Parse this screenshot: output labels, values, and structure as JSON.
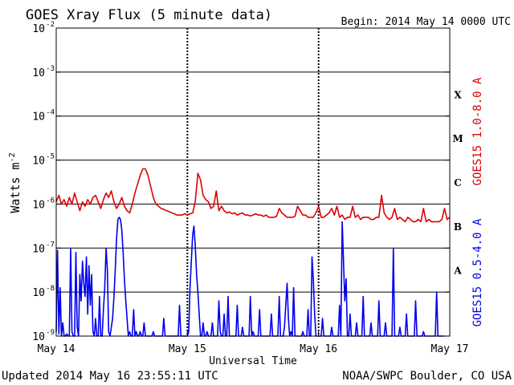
{
  "chart_data": {
    "type": "line",
    "title": "GOES Xray Flux (5 minute data)",
    "begin_label": "Begin:  2014 May 14 0000 UTC",
    "ylabel_main": "Watts m",
    "ylabel_sup": "-2",
    "xlabel": "Universal Time",
    "footer_left": "Updated 2014 May 16 23:55:11 UTC",
    "footer_right": "NOAA/SWPC Boulder, CO USA",
    "x_ticks": [
      "May 14",
      "May 15",
      "May 16",
      "May 17"
    ],
    "xlim_days": [
      0,
      3
    ],
    "ylog": true,
    "ylim": [
      1e-09,
      0.01
    ],
    "y_ticks": [
      {
        "base": "10",
        "exp": "-2"
      },
      {
        "base": "10",
        "exp": "-3"
      },
      {
        "base": "10",
        "exp": "-4"
      },
      {
        "base": "10",
        "exp": "-5"
      },
      {
        "base": "10",
        "exp": "-6"
      },
      {
        "base": "10",
        "exp": "-7"
      },
      {
        "base": "10",
        "exp": "-8"
      },
      {
        "base": "10",
        "exp": "-9"
      }
    ],
    "flare_classes": [
      {
        "label": "X",
        "log": -3.5
      },
      {
        "label": "M",
        "log": -4.5
      },
      {
        "label": "C",
        "log": -5.5
      },
      {
        "label": "B",
        "log": -6.5
      },
      {
        "label": "A",
        "log": -7.5
      }
    ],
    "grid": "horizontal lines at each decade from 1e-3 to 1e-7; dotted vertical lines at day boundaries",
    "series": [
      {
        "name": "GOES15 1.0-8.0 A",
        "color": "#dd0000",
        "x_days": [
          0,
          0.02,
          0.04,
          0.06,
          0.08,
          0.1,
          0.12,
          0.14,
          0.16,
          0.18,
          0.2,
          0.22,
          0.24,
          0.26,
          0.28,
          0.3,
          0.32,
          0.34,
          0.36,
          0.38,
          0.4,
          0.42,
          0.44,
          0.46,
          0.48,
          0.5,
          0.52,
          0.54,
          0.56,
          0.58,
          0.6,
          0.62,
          0.64,
          0.66,
          0.68,
          0.7,
          0.72,
          0.74,
          0.76,
          0.78,
          0.8,
          0.82,
          0.84,
          0.86,
          0.88,
          0.9,
          0.92,
          0.94,
          0.96,
          0.98,
          1.0,
          1.02,
          1.04,
          1.06,
          1.08,
          1.1,
          1.12,
          1.14,
          1.16,
          1.18,
          1.2,
          1.22,
          1.24,
          1.26,
          1.28,
          1.3,
          1.32,
          1.34,
          1.36,
          1.38,
          1.4,
          1.42,
          1.44,
          1.46,
          1.48,
          1.5,
          1.52,
          1.54,
          1.56,
          1.58,
          1.6,
          1.62,
          1.64,
          1.66,
          1.68,
          1.7,
          1.72,
          1.74,
          1.76,
          1.78,
          1.8,
          1.82,
          1.84,
          1.86,
          1.88,
          1.9,
          1.92,
          1.94,
          1.96,
          1.98,
          2.0,
          2.02,
          2.04,
          2.06,
          2.08,
          2.1,
          2.12,
          2.14,
          2.16,
          2.18,
          2.2,
          2.22,
          2.24,
          2.26,
          2.28,
          2.3,
          2.32,
          2.34,
          2.36,
          2.38,
          2.4,
          2.42,
          2.44,
          2.46,
          2.48,
          2.5,
          2.52,
          2.54,
          2.56,
          2.58,
          2.6,
          2.62,
          2.64,
          2.66,
          2.68,
          2.7,
          2.72,
          2.74,
          2.76,
          2.78,
          2.8,
          2.82,
          2.84,
          2.86,
          2.88,
          2.9,
          2.92,
          2.94,
          2.96,
          2.98,
          3.0
        ],
        "log_y": [
          -5.95,
          -5.8,
          -6.0,
          -5.9,
          -6.05,
          -5.85,
          -6.0,
          -5.75,
          -5.95,
          -6.15,
          -5.95,
          -6.05,
          -5.9,
          -6.0,
          -5.85,
          -5.8,
          -5.95,
          -6.1,
          -5.9,
          -5.75,
          -5.85,
          -5.7,
          -5.95,
          -6.1,
          -6.0,
          -5.85,
          -6.05,
          -6.15,
          -6.2,
          -6.0,
          -5.75,
          -5.55,
          -5.35,
          -5.2,
          -5.2,
          -5.35,
          -5.6,
          -5.85,
          -6.0,
          -6.05,
          -6.1,
          -6.12,
          -6.15,
          -6.17,
          -6.2,
          -6.22,
          -6.25,
          -6.25,
          -6.25,
          -6.22,
          -6.25,
          -6.22,
          -6.2,
          -5.95,
          -5.3,
          -5.45,
          -5.8,
          -5.9,
          -5.95,
          -6.1,
          -6.05,
          -5.7,
          -6.15,
          -6.05,
          -6.15,
          -6.2,
          -6.18,
          -6.22,
          -6.2,
          -6.25,
          -6.22,
          -6.2,
          -6.25,
          -6.25,
          -6.27,
          -6.25,
          -6.22,
          -6.25,
          -6.25,
          -6.28,
          -6.25,
          -6.3,
          -6.3,
          -6.3,
          -6.28,
          -6.1,
          -6.2,
          -6.25,
          -6.3,
          -6.3,
          -6.3,
          -6.28,
          -6.05,
          -6.15,
          -6.25,
          -6.25,
          -6.3,
          -6.3,
          -6.3,
          -6.2,
          -6.05,
          -6.3,
          -6.3,
          -6.25,
          -6.2,
          -6.1,
          -6.25,
          -6.05,
          -6.3,
          -6.25,
          -6.35,
          -6.3,
          -6.3,
          -6.05,
          -6.3,
          -6.25,
          -6.35,
          -6.3,
          -6.3,
          -6.3,
          -6.35,
          -6.35,
          -6.3,
          -6.3,
          -5.8,
          -6.2,
          -6.3,
          -6.35,
          -6.3,
          -6.1,
          -6.35,
          -6.3,
          -6.35,
          -6.4,
          -6.3,
          -6.35,
          -6.4,
          -6.4,
          -6.35,
          -6.4,
          -6.1,
          -6.4,
          -6.35,
          -6.4,
          -6.4,
          -6.4,
          -6.4,
          -6.35,
          -6.1,
          -6.35,
          -6.3
        ]
      },
      {
        "name": "GOES15 0.5-4.0 A",
        "color": "#0000ee",
        "x_days": [
          0,
          0.01,
          0.02,
          0.03,
          0.04,
          0.05,
          0.06,
          0.07,
          0.08,
          0.09,
          0.1,
          0.11,
          0.12,
          0.13,
          0.14,
          0.15,
          0.16,
          0.17,
          0.18,
          0.19,
          0.2,
          0.21,
          0.22,
          0.23,
          0.24,
          0.25,
          0.26,
          0.27,
          0.28,
          0.29,
          0.3,
          0.31,
          0.32,
          0.33,
          0.34,
          0.35,
          0.36,
          0.37,
          0.38,
          0.39,
          0.4,
          0.41,
          0.42,
          0.43,
          0.44,
          0.45,
          0.46,
          0.47,
          0.48,
          0.49,
          0.5,
          0.51,
          0.52,
          0.53,
          0.54,
          0.55,
          0.56,
          0.57,
          0.58,
          0.59,
          0.6,
          0.61,
          0.62,
          0.63,
          0.64,
          0.65,
          0.66,
          0.67,
          0.68,
          0.69,
          0.7,
          0.71,
          0.72,
          0.73,
          0.74,
          0.75,
          0.76,
          0.77,
          0.78,
          0.79,
          0.8,
          0.81,
          0.82,
          0.83,
          0.84,
          0.85,
          0.86,
          0.87,
          0.88,
          0.89,
          0.9,
          0.91,
          0.92,
          0.93,
          0.94,
          0.95,
          0.96,
          0.97,
          0.98,
          0.99,
          1.0,
          1.01,
          1.02,
          1.03,
          1.04,
          1.05,
          1.06,
          1.07,
          1.08,
          1.09,
          1.1,
          1.11,
          1.12,
          1.13,
          1.14,
          1.15,
          1.16,
          1.17,
          1.18,
          1.19,
          1.2,
          1.21,
          1.22,
          1.23,
          1.24,
          1.25,
          1.26,
          1.27,
          1.28,
          1.29,
          1.3,
          1.31,
          1.32,
          1.33,
          1.34,
          1.35,
          1.36,
          1.37,
          1.38,
          1.39,
          1.4,
          1.41,
          1.42,
          1.43,
          1.44,
          1.45,
          1.46,
          1.47,
          1.48,
          1.49,
          1.5,
          1.51,
          1.52,
          1.53,
          1.54,
          1.55,
          1.56,
          1.57,
          1.58,
          1.59,
          1.6,
          1.61,
          1.62,
          1.63,
          1.64,
          1.65,
          1.66,
          1.67,
          1.68,
          1.69,
          1.7,
          1.71,
          1.72,
          1.73,
          1.74,
          1.75,
          1.76,
          1.77,
          1.78,
          1.79,
          1.8,
          1.81,
          1.82,
          1.83,
          1.84,
          1.85,
          1.86,
          1.87,
          1.88,
          1.89,
          1.9,
          1.91,
          1.92,
          1.93,
          1.94,
          1.95,
          1.96,
          1.97,
          1.98,
          1.99,
          2.0,
          2.01,
          2.02,
          2.03,
          2.04,
          2.05,
          2.06,
          2.07,
          2.08,
          2.09,
          2.1,
          2.11,
          2.12,
          2.13,
          2.14,
          2.15,
          2.16,
          2.17,
          2.18,
          2.19,
          2.2,
          2.21,
          2.22,
          2.23,
          2.24,
          2.25,
          2.26,
          2.27,
          2.28,
          2.29,
          2.3,
          2.31,
          2.32,
          2.33,
          2.34,
          2.35,
          2.36,
          2.37,
          2.38,
          2.39,
          2.4,
          2.41,
          2.42,
          2.43,
          2.44,
          2.45,
          2.46,
          2.47,
          2.48,
          2.49,
          2.5,
          2.51,
          2.52,
          2.53,
          2.54,
          2.55,
          2.56,
          2.57,
          2.58,
          2.59,
          2.6,
          2.61,
          2.62,
          2.63,
          2.64,
          2.65,
          2.66,
          2.67,
          2.68,
          2.69,
          2.7,
          2.71,
          2.72,
          2.73,
          2.74,
          2.75,
          2.76,
          2.77,
          2.78,
          2.79,
          2.8,
          2.81,
          2.82,
          2.83,
          2.84,
          2.85,
          2.86,
          2.87,
          2.88,
          2.89,
          2.9,
          2.91,
          2.92,
          2.93,
          2.94,
          2.95,
          2.96,
          2.97,
          2.98,
          2.99,
          3.0
        ],
        "log_y": [
          -8.9,
          -7.05,
          -8.95,
          -7.9,
          -9.0,
          -8.7,
          -9.0,
          -9.0,
          -8.95,
          -9.0,
          -9.0,
          -7.0,
          -8.9,
          -9.0,
          -9.0,
          -7.1,
          -8.8,
          -9.0,
          -7.6,
          -8.2,
          -7.3,
          -7.8,
          -8.1,
          -7.2,
          -8.5,
          -7.4,
          -8.3,
          -7.6,
          -8.9,
          -9.0,
          -8.6,
          -9.0,
          -9.0,
          -8.1,
          -9.0,
          -9.0,
          -8.4,
          -7.9,
          -7.0,
          -7.5,
          -8.9,
          -9.0,
          -8.8,
          -8.6,
          -8.1,
          -7.5,
          -6.8,
          -6.35,
          -6.3,
          -6.35,
          -6.6,
          -7.1,
          -7.7,
          -8.2,
          -8.6,
          -9.0,
          -8.9,
          -9.0,
          -9.0,
          -8.4,
          -9.0,
          -8.9,
          -9.0,
          -9.0,
          -8.9,
          -9.0,
          -9.0,
          -8.7,
          -9.0,
          -9.0,
          -9.0,
          -9.0,
          -9.0,
          -9.0,
          -8.9,
          -9.0,
          -9.0,
          -9.0,
          -9.0,
          -9.0,
          -9.0,
          -9.0,
          -8.6,
          -9.0,
          -9.0,
          -9.0,
          -9.0,
          -9.0,
          -9.0,
          -9.0,
          -9.0,
          -9.0,
          -9.0,
          -9.0,
          -8.3,
          -9.0,
          -9.0,
          -9.0,
          -9.0,
          -9.0,
          -9.0,
          -8.9,
          -7.9,
          -7.3,
          -6.7,
          -6.5,
          -6.95,
          -7.6,
          -8.0,
          -8.5,
          -9.0,
          -9.0,
          -8.7,
          -9.0,
          -9.0,
          -8.9,
          -9.0,
          -9.0,
          -9.0,
          -8.7,
          -9.0,
          -9.0,
          -9.0,
          -9.0,
          -8.2,
          -8.9,
          -9.0,
          -9.0,
          -8.5,
          -9.0,
          -9.0,
          -8.1,
          -9.0,
          -9.0,
          -9.0,
          -9.0,
          -9.0,
          -9.0,
          -8.3,
          -9.0,
          -9.0,
          -9.0,
          -8.8,
          -9.0,
          -9.0,
          -9.0,
          -9.0,
          -9.0,
          -8.1,
          -9.0,
          -8.9,
          -9.0,
          -9.0,
          -9.0,
          -9.0,
          -8.4,
          -9.0,
          -9.0,
          -9.0,
          -9.0,
          -9.0,
          -9.0,
          -9.0,
          -9.0,
          -8.5,
          -9.0,
          -9.0,
          -9.0,
          -9.0,
          -9.0,
          -8.1,
          -9.0,
          -9.0,
          -9.0,
          -8.8,
          -8.3,
          -7.8,
          -8.6,
          -9.0,
          -8.9,
          -9.0,
          -7.9,
          -9.0,
          -9.0,
          -9.0,
          -9.0,
          -9.0,
          -9.0,
          -8.9,
          -9.0,
          -9.0,
          -9.0,
          -8.4,
          -9.0,
          -9.0,
          -7.2,
          -7.7,
          -8.5,
          -9.0,
          -9.0,
          -9.0,
          -9.0,
          -9.0,
          -8.6,
          -9.0,
          -9.0,
          -9.0,
          -9.0,
          -9.0,
          -9.0,
          -8.8,
          -9.0,
          -9.0,
          -9.0,
          -9.0,
          -9.0,
          -8.3,
          -9.0,
          -6.4,
          -7.3,
          -8.2,
          -7.7,
          -9.0,
          -9.0,
          -8.5,
          -9.0,
          -9.0,
          -9.0,
          -9.0,
          -8.7,
          -9.0,
          -9.0,
          -9.0,
          -9.0,
          -8.1,
          -9.0,
          -9.0,
          -9.0,
          -9.0,
          -9.0,
          -8.7,
          -9.0,
          -9.0,
          -9.0,
          -9.0,
          -9.0,
          -8.2,
          -9.0,
          -9.0,
          -9.0,
          -9.0,
          -8.7,
          -9.0,
          -9.0,
          -9.0,
          -9.0,
          -9.0,
          -7.0,
          -9.0,
          -9.0,
          -9.0,
          -9.0,
          -8.8,
          -9.0,
          -9.0,
          -9.0,
          -9.0,
          -8.5,
          -9.0,
          -9.0,
          -9.0,
          -9.0,
          -9.0,
          -9.0,
          -8.2,
          -9.0,
          -9.0,
          -9.0,
          -9.0,
          -9.0,
          -8.9,
          -9.0,
          -9.0,
          -9.0,
          -9.0,
          -9.0,
          -9.0,
          -9.0,
          -9.0,
          -9.0,
          -8.0,
          -9.0,
          -9.0,
          -9.0,
          -9.0,
          -9.0,
          -9.0
        ]
      }
    ]
  }
}
